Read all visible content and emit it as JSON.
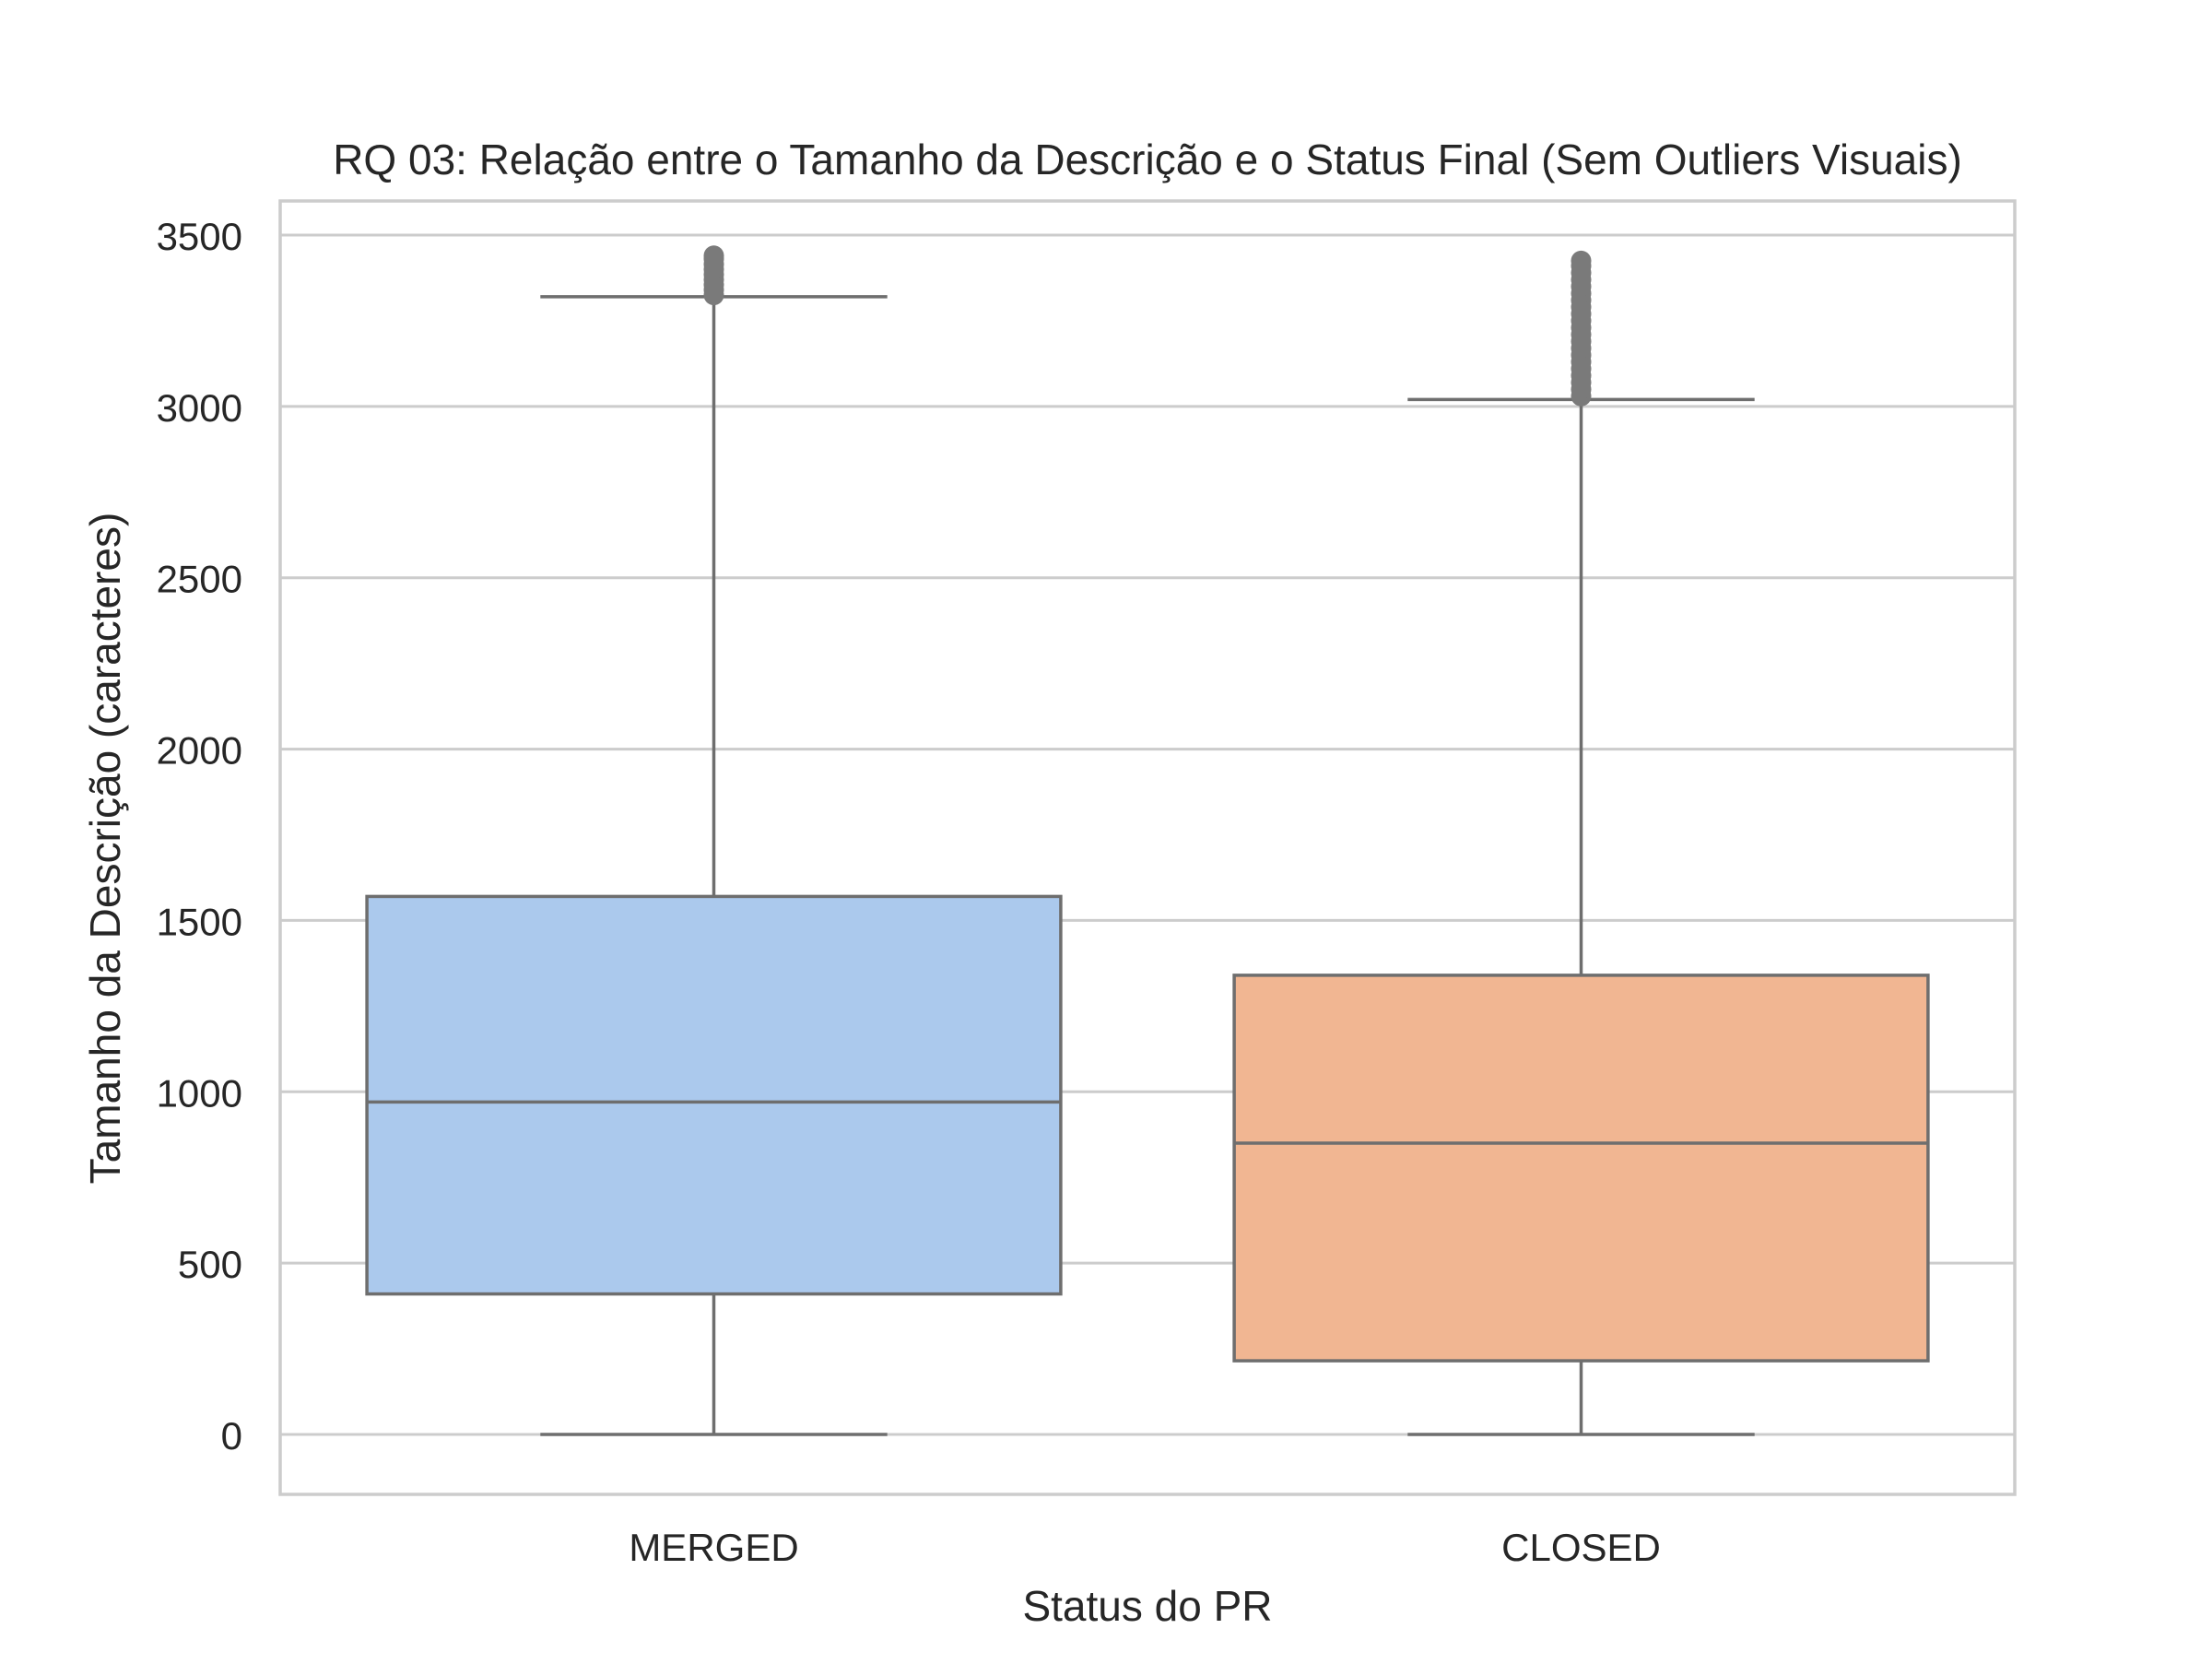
{
  "chart_data": {
    "type": "box",
    "title": "RQ 03: Relação entre o Tamanho da Descrição e o Status Final (Sem Outliers Visuais)",
    "xlabel": "Status do PR",
    "ylabel": "Tamanho da Descrição (caracteres)",
    "ylim": [
      -170,
      3600
    ],
    "yticks": [
      0,
      500,
      1000,
      1500,
      2000,
      2500,
      3000,
      3500
    ],
    "grid": true,
    "categories": [
      "MERGED",
      "CLOSED"
    ],
    "boxes": [
      {
        "category": "MERGED",
        "min": 0,
        "q1": 410,
        "median": 970,
        "q3": 1570,
        "max": 3320,
        "outliers": [
          3325,
          3340,
          3355,
          3370,
          3385,
          3400,
          3415,
          3430,
          3440
        ],
        "color": "#abc9ed"
      },
      {
        "category": "CLOSED",
        "min": 0,
        "q1": 215,
        "median": 850,
        "q3": 1340,
        "max": 3020,
        "outliers": [
          3030,
          3050,
          3070,
          3090,
          3110,
          3130,
          3150,
          3170,
          3190,
          3210,
          3230,
          3250,
          3270,
          3290,
          3310,
          3330,
          3350,
          3370,
          3390,
          3410,
          3425
        ],
        "color": "#f1b692"
      }
    ],
    "colors": {
      "grid": "#cccccc",
      "frame": "#cccccc",
      "box_edge": "#6e6e6e",
      "outlier": "#7a7a7a",
      "text": "#262626"
    }
  }
}
